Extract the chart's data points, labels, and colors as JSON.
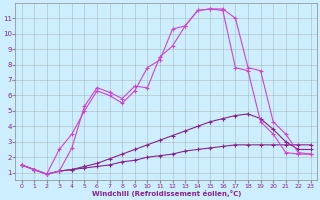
{
  "xlabel": "Windchill (Refroidissement éolien,°C)",
  "bg_color": "#cceeff",
  "grid_color": "#aabbbb",
  "line_color_dark": "#882288",
  "line_color_light": "#cc44cc",
  "xlim": [
    -0.5,
    23.5
  ],
  "ylim": [
    0.5,
    12.0
  ],
  "xticks": [
    0,
    1,
    2,
    3,
    4,
    5,
    6,
    7,
    8,
    9,
    10,
    11,
    12,
    13,
    14,
    15,
    16,
    17,
    18,
    19,
    20,
    21,
    22,
    23
  ],
  "yticks": [
    1,
    2,
    3,
    4,
    5,
    6,
    7,
    8,
    9,
    10,
    11
  ],
  "series1_x": [
    0,
    1,
    2,
    3,
    4,
    5,
    6,
    7,
    8,
    9,
    10,
    11,
    12,
    13,
    14,
    15,
    16,
    17,
    18,
    19,
    20,
    21,
    22,
    23
  ],
  "series1_y": [
    1.5,
    1.2,
    0.9,
    1.1,
    1.2,
    1.3,
    1.4,
    1.5,
    1.7,
    1.8,
    2.0,
    2.1,
    2.2,
    2.4,
    2.5,
    2.6,
    2.7,
    2.8,
    2.8,
    2.8,
    2.8,
    2.8,
    2.8,
    2.8
  ],
  "series2_x": [
    0,
    1,
    2,
    3,
    4,
    5,
    6,
    7,
    8,
    9,
    10,
    11,
    12,
    13,
    14,
    15,
    16,
    17,
    18,
    19,
    20,
    21,
    22,
    23
  ],
  "series2_y": [
    1.5,
    1.2,
    0.9,
    1.1,
    1.2,
    1.4,
    1.6,
    1.9,
    2.2,
    2.5,
    2.8,
    3.1,
    3.4,
    3.7,
    4.0,
    4.3,
    4.5,
    4.7,
    4.8,
    4.5,
    3.8,
    3.0,
    2.5,
    2.5
  ],
  "series3_x": [
    0,
    1,
    2,
    3,
    4,
    5,
    6,
    7,
    8,
    9,
    10,
    11,
    12,
    13,
    14,
    15,
    16,
    17,
    18,
    19,
    20,
    21,
    22,
    23
  ],
  "series3_y": [
    1.5,
    1.2,
    0.9,
    2.5,
    3.5,
    5.0,
    6.3,
    6.0,
    5.5,
    6.3,
    7.8,
    8.3,
    10.3,
    10.5,
    11.5,
    11.6,
    11.5,
    7.8,
    7.6,
    4.3,
    3.5,
    2.3,
    2.2,
    2.2
  ],
  "series4_x": [
    0,
    2,
    3,
    4,
    5,
    6,
    7,
    8,
    9,
    10,
    11,
    12,
    13,
    14,
    15,
    16,
    17,
    18,
    19,
    20,
    21,
    22,
    23
  ],
  "series4_y": [
    1.5,
    0.9,
    1.1,
    2.6,
    5.3,
    6.5,
    6.2,
    5.8,
    6.6,
    6.5,
    8.5,
    9.2,
    10.5,
    11.5,
    11.6,
    11.6,
    11.0,
    7.8,
    7.6,
    4.3,
    3.5,
    2.3,
    2.2
  ]
}
